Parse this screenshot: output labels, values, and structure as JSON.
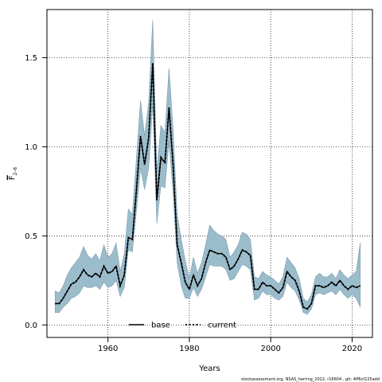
{
  "chart_data": {
    "type": "line",
    "xlabel": "Years",
    "ylabel_main": "F",
    "ylabel_sub": "2–6",
    "xlim": [
      1945,
      2025
    ],
    "ylim": [
      -0.07,
      1.77
    ],
    "x_ticks": [
      1960,
      1980,
      2000,
      2020
    ],
    "x_tick_labels": [
      "1960",
      "1980",
      "2000",
      "2020"
    ],
    "y_ticks": [
      0.0,
      0.5,
      1.0,
      1.5
    ],
    "y_tick_labels": [
      "0.0",
      "0.5",
      "1.0",
      "1.5"
    ],
    "grid": true,
    "legend_position": "bottom-center",
    "band_color": "#9bbccb",
    "band_edge_color": "#7a9db0",
    "line_color": "#000000",
    "series": [
      {
        "name": "base",
        "style": "solid"
      },
      {
        "name": "current",
        "style": "dotted"
      }
    ],
    "x": [
      1947,
      1948,
      1949,
      1950,
      1951,
      1952,
      1953,
      1954,
      1955,
      1956,
      1957,
      1958,
      1959,
      1960,
      1961,
      1962,
      1963,
      1964,
      1965,
      1966,
      1967,
      1968,
      1969,
      1970,
      1971,
      1972,
      1973,
      1974,
      1975,
      1976,
      1977,
      1978,
      1979,
      1980,
      1981,
      1982,
      1983,
      1984,
      1985,
      1986,
      1987,
      1988,
      1989,
      1990,
      1991,
      1992,
      1993,
      1994,
      1995,
      1996,
      1997,
      1998,
      1999,
      2000,
      2001,
      2002,
      2003,
      2004,
      2005,
      2006,
      2007,
      2008,
      2009,
      2010,
      2011,
      2012,
      2013,
      2014,
      2015,
      2016,
      2017,
      2018,
      2019,
      2020,
      2021,
      2022
    ],
    "estimate": [
      0.12,
      0.12,
      0.15,
      0.19,
      0.23,
      0.24,
      0.27,
      0.31,
      0.28,
      0.27,
      0.29,
      0.27,
      0.33,
      0.29,
      0.3,
      0.33,
      0.22,
      0.28,
      0.49,
      0.48,
      0.76,
      1.06,
      0.9,
      1.05,
      1.47,
      0.7,
      0.94,
      0.91,
      1.22,
      0.9,
      0.45,
      0.35,
      0.24,
      0.2,
      0.28,
      0.22,
      0.26,
      0.35,
      0.42,
      0.41,
      0.4,
      0.4,
      0.38,
      0.31,
      0.33,
      0.37,
      0.42,
      0.41,
      0.39,
      0.2,
      0.2,
      0.24,
      0.22,
      0.22,
      0.2,
      0.18,
      0.21,
      0.3,
      0.27,
      0.25,
      0.19,
      0.1,
      0.09,
      0.12,
      0.22,
      0.22,
      0.21,
      0.22,
      0.24,
      0.22,
      0.25,
      0.22,
      0.2,
      0.22,
      0.21,
      0.22
    ],
    "lower": [
      0.07,
      0.07,
      0.1,
      0.12,
      0.15,
      0.16,
      0.18,
      0.22,
      0.21,
      0.21,
      0.22,
      0.2,
      0.24,
      0.21,
      0.22,
      0.25,
      0.16,
      0.21,
      0.42,
      0.41,
      0.64,
      0.88,
      0.76,
      0.88,
      1.24,
      0.57,
      0.78,
      0.77,
      1.03,
      0.74,
      0.35,
      0.22,
      0.15,
      0.15,
      0.21,
      0.16,
      0.2,
      0.27,
      0.34,
      0.33,
      0.33,
      0.33,
      0.31,
      0.25,
      0.26,
      0.3,
      0.34,
      0.33,
      0.31,
      0.14,
      0.15,
      0.19,
      0.17,
      0.17,
      0.15,
      0.14,
      0.16,
      0.24,
      0.21,
      0.19,
      0.14,
      0.07,
      0.06,
      0.09,
      0.17,
      0.18,
      0.17,
      0.18,
      0.19,
      0.17,
      0.2,
      0.17,
      0.15,
      0.17,
      0.15,
      0.1
    ],
    "upper": [
      0.19,
      0.18,
      0.22,
      0.28,
      0.32,
      0.35,
      0.38,
      0.44,
      0.39,
      0.37,
      0.4,
      0.36,
      0.45,
      0.38,
      0.4,
      0.46,
      0.3,
      0.4,
      0.65,
      0.62,
      0.94,
      1.26,
      1.06,
      1.25,
      1.71,
      0.86,
      1.12,
      1.08,
      1.44,
      1.1,
      0.62,
      0.48,
      0.36,
      0.26,
      0.38,
      0.29,
      0.35,
      0.45,
      0.56,
      0.53,
      0.51,
      0.5,
      0.48,
      0.38,
      0.41,
      0.45,
      0.52,
      0.51,
      0.48,
      0.27,
      0.26,
      0.3,
      0.28,
      0.27,
      0.25,
      0.23,
      0.27,
      0.38,
      0.35,
      0.32,
      0.26,
      0.15,
      0.13,
      0.17,
      0.27,
      0.29,
      0.27,
      0.27,
      0.29,
      0.26,
      0.31,
      0.28,
      0.26,
      0.28,
      0.3,
      0.46
    ]
  },
  "footer_text": "stockassessment.org, NSAS_herring_2022, r16604 , git: 4ff6cf225add"
}
